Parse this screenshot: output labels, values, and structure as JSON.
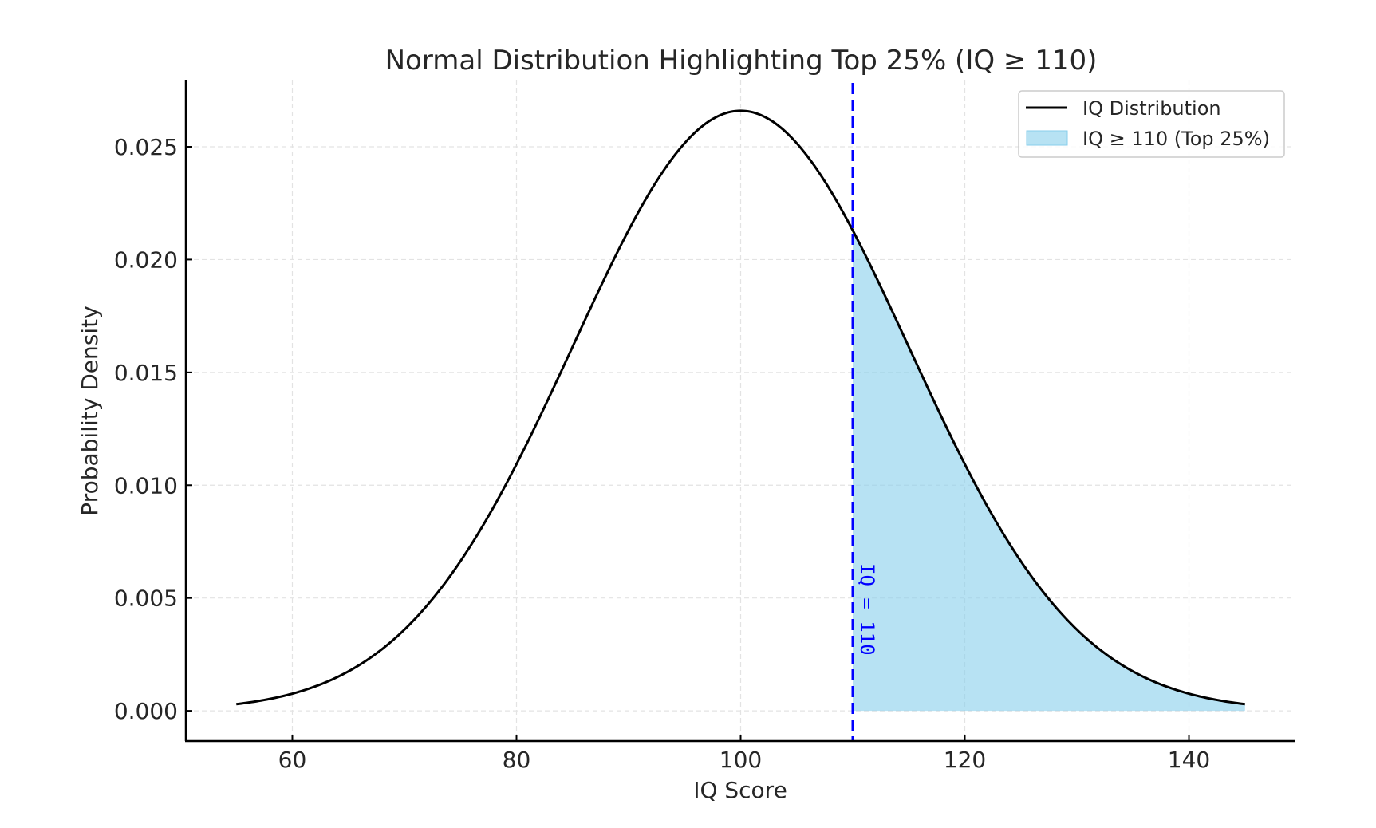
{
  "chart_data": {
    "type": "area",
    "title": "Normal Distribution Highlighting Top 25% (IQ ≥ 110)",
    "xlabel": "IQ Score",
    "ylabel": "Probability Density",
    "xlim": [
      50.5,
      149.5
    ],
    "ylim": [
      -0.00134,
      0.02797
    ],
    "x_ticks": [
      60,
      80,
      100,
      120,
      140
    ],
    "x_tick_labels": [
      "60",
      "80",
      "100",
      "120",
      "140"
    ],
    "y_ticks": [
      0.0,
      0.005,
      0.01,
      0.015,
      0.02,
      0.025
    ],
    "y_tick_labels": [
      "0.000",
      "0.005",
      "0.010",
      "0.015",
      "0.020",
      "0.025"
    ],
    "grid": true,
    "legend_position": "top-right",
    "distribution": {
      "kind": "normal",
      "mean": 100,
      "sd": 15,
      "x_range": [
        55,
        145
      ]
    },
    "series": [
      {
        "name": "IQ Distribution",
        "kind": "line",
        "color": "#000000"
      },
      {
        "name": "IQ ≥ 110 (Top 25%)",
        "kind": "fill",
        "from_x": 110,
        "to_x": 145,
        "color": "#87ceeb",
        "opacity": 0.6
      }
    ],
    "vline": {
      "x": 110,
      "color": "#0000ff",
      "style": "dashed"
    },
    "annotations": [
      {
        "text": "IQ = 110",
        "x": 110,
        "y": 0.0045,
        "rotation": 90,
        "color": "#0000ff"
      }
    ],
    "sample_points": [
      {
        "x": 55,
        "y": 0.000295
      },
      {
        "x": 60,
        "y": 0.000759
      },
      {
        "x": 65,
        "y": 0.00175
      },
      {
        "x": 70,
        "y": 0.0036
      },
      {
        "x": 75,
        "y": 0.00663
      },
      {
        "x": 80,
        "y": 0.0109
      },
      {
        "x": 85,
        "y": 0.0161
      },
      {
        "x": 90,
        "y": 0.0213
      },
      {
        "x": 95,
        "y": 0.0252
      },
      {
        "x": 100,
        "y": 0.0266
      },
      {
        "x": 105,
        "y": 0.0252
      },
      {
        "x": 110,
        "y": 0.0213
      },
      {
        "x": 115,
        "y": 0.0161
      },
      {
        "x": 120,
        "y": 0.0109
      },
      {
        "x": 125,
        "y": 0.00663
      },
      {
        "x": 130,
        "y": 0.0036
      },
      {
        "x": 135,
        "y": 0.00175
      },
      {
        "x": 140,
        "y": 0.000759
      },
      {
        "x": 145,
        "y": 0.000295
      }
    ]
  }
}
